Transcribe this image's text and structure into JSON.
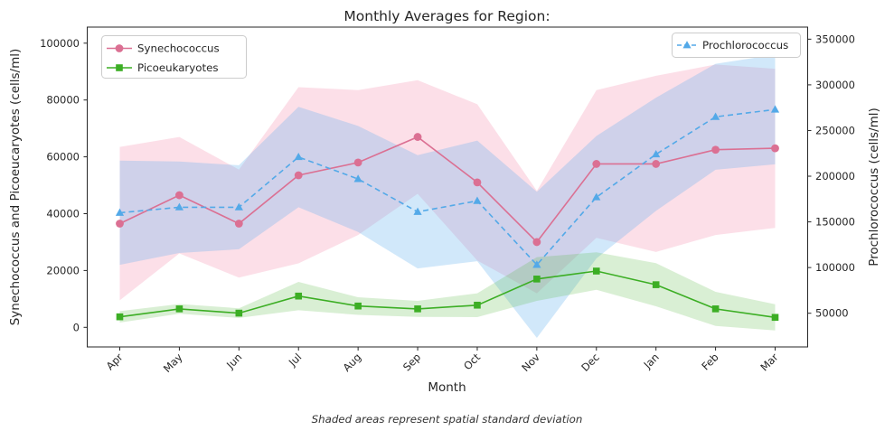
{
  "title": "Monthly Averages for Region:",
  "caption": "Shaded areas represent spatial standard deviation",
  "x_axis": {
    "label": "Month",
    "tick_labels": [
      "Apr",
      "May",
      "Jun",
      "Jul",
      "Aug",
      "Sep",
      "Oct",
      "Nov",
      "Dec",
      "Jan",
      "Feb",
      "Mar"
    ]
  },
  "y_axis_left": {
    "label": "Synechococcus and Picoeucaryotes (cells/ml)",
    "tick_labels": [
      "0",
      "20000",
      "40000",
      "60000",
      "80000",
      "100000"
    ],
    "tick_values": [
      0,
      20000,
      40000,
      60000,
      80000,
      100000
    ]
  },
  "y_axis_right": {
    "label": "Prochlorococcus (cells/ml)",
    "tick_labels": [
      "50000",
      "100000",
      "150000",
      "200000",
      "250000",
      "300000",
      "350000"
    ],
    "tick_values": [
      50000,
      100000,
      150000,
      200000,
      250000,
      300000,
      350000
    ]
  },
  "legends": {
    "upper_left": [
      "Synechococcus",
      "Picoeukaryotes"
    ],
    "upper_right": [
      "Prochlorococcus"
    ]
  },
  "colors": {
    "synechococcus": "#db7093",
    "synechococcus_band": "#f06d97",
    "picoeukaryotes": "#3cae24",
    "picoeukaryotes_band": "#52b83a",
    "prochlorococcus": "#53a9e8",
    "prochlorococcus_band": "#66b3ed",
    "spine": "#262626",
    "legend_border": "#cccccc"
  },
  "chart_data": {
    "type": "line",
    "title": "Monthly Averages for Region:",
    "xlabel": "Month",
    "ylabel_left": "Synechococcus and Picoeucaryotes (cells/ml)",
    "ylabel_right": "Prochlorococcus (cells/ml)",
    "categories": [
      "Apr",
      "May",
      "Jun",
      "Jul",
      "Aug",
      "Sep",
      "Oct",
      "Nov",
      "Dec",
      "Jan",
      "Feb",
      "Mar"
    ],
    "series": [
      {
        "name": "Synechococcus",
        "axis": "left",
        "marker": "circle",
        "line_style": "solid",
        "color": "#db7093",
        "band_color": "#f06d97",
        "band_opacity": 0.22,
        "values": [
          36500,
          46500,
          36500,
          53500,
          58000,
          67000,
          51000,
          30000,
          57500,
          57500,
          62500,
          63000
        ],
        "std": [
          27000,
          20500,
          19000,
          31000,
          25500,
          20000,
          27500,
          18000,
          26000,
          31000,
          30000,
          28000
        ]
      },
      {
        "name": "Picoeukaryotes",
        "axis": "left",
        "marker": "square",
        "line_style": "solid",
        "color": "#3cae24",
        "band_color": "#52b83a",
        "band_opacity": 0.22,
        "values": [
          3700,
          6500,
          5000,
          11000,
          7500,
          6500,
          7800,
          17000,
          19800,
          15000,
          6500,
          3500
        ],
        "std": [
          2000,
          1700,
          1700,
          5000,
          3100,
          2800,
          4200,
          7700,
          6600,
          7600,
          6000,
          4600
        ]
      },
      {
        "name": "Prochlorococcus",
        "axis": "right",
        "marker": "triangle",
        "line_style": "dashed",
        "color": "#53a9e8",
        "band_color": "#66b3ed",
        "band_opacity": 0.3,
        "values": [
          160000,
          166000,
          166000,
          221000,
          197000,
          161000,
          173000,
          103000,
          177000,
          224000,
          265000,
          273000
        ],
        "std": [
          57000,
          50000,
          46000,
          55000,
          58000,
          62000,
          66000,
          80000,
          67000,
          62000,
          58000,
          60000
        ]
      }
    ],
    "ylim_left": [
      -6900,
      105650
    ],
    "ylim_right": [
      13100,
      363200
    ],
    "grid": false,
    "legend_positions": [
      "upper left",
      "upper right"
    ],
    "band_note": "Shaded areas represent spatial standard deviation"
  }
}
